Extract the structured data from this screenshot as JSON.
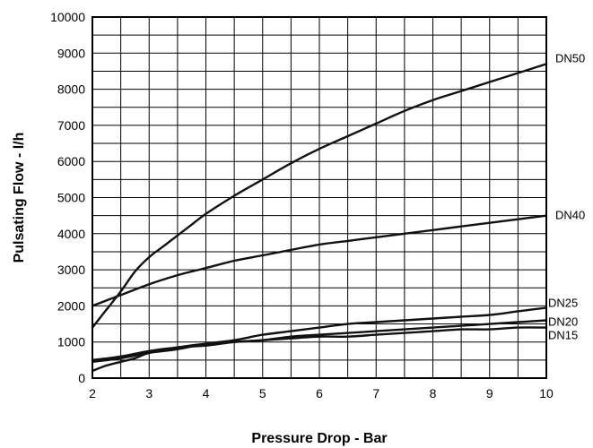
{
  "chart_data": {
    "type": "line",
    "title": "",
    "xlabel": "Pressure Drop - Bar",
    "ylabel": "Pulsating Flow - l/h",
    "xlim": [
      2,
      10
    ],
    "ylim": [
      0,
      10000
    ],
    "x_ticks": [
      "2",
      "3",
      "4",
      "5",
      "6",
      "7",
      "8",
      "9",
      "10"
    ],
    "y_ticks": [
      "0",
      "1000",
      "2000",
      "3000",
      "4000",
      "5000",
      "6000",
      "7000",
      "8000",
      "9000",
      "10000"
    ],
    "grid": true,
    "series": [
      {
        "name": "DN50",
        "x": [
          2,
          2.25,
          2.5,
          2.75,
          3,
          3.25,
          3.5,
          3.75,
          4,
          4.5,
          5,
          5.5,
          6,
          6.5,
          7,
          7.5,
          8,
          8.5,
          9,
          9.5,
          10
        ],
        "values": [
          1400,
          1900,
          2400,
          2950,
          3350,
          3650,
          3950,
          4250,
          4550,
          5050,
          5500,
          5950,
          6350,
          6700,
          7050,
          7400,
          7700,
          7950,
          8200,
          8450,
          8700
        ]
      },
      {
        "name": "DN40",
        "x": [
          2,
          2.5,
          3,
          3.5,
          4,
          4.5,
          5,
          5.5,
          6,
          6.5,
          7,
          7.5,
          8,
          8.5,
          9,
          9.5,
          10
        ],
        "values": [
          2000,
          2300,
          2600,
          2850,
          3050,
          3250,
          3400,
          3550,
          3700,
          3800,
          3900,
          4000,
          4100,
          4200,
          4300,
          4400,
          4500
        ]
      },
      {
        "name": "DN25",
        "x": [
          2,
          2.5,
          3,
          3.5,
          4,
          4.5,
          5,
          5.5,
          6,
          6.5,
          7,
          7.5,
          8,
          8.5,
          9,
          9.5,
          10
        ],
        "values": [
          450,
          550,
          700,
          800,
          950,
          1050,
          1200,
          1300,
          1400,
          1500,
          1550,
          1600,
          1650,
          1700,
          1750,
          1850,
          1950
        ]
      },
      {
        "name": "DN20",
        "x": [
          2,
          2.5,
          3,
          3.5,
          4,
          4.5,
          5,
          5.5,
          6,
          6.5,
          7,
          7.5,
          8,
          8.5,
          9,
          9.5,
          10
        ],
        "values": [
          500,
          600,
          750,
          850,
          900,
          1000,
          1050,
          1150,
          1200,
          1250,
          1300,
          1350,
          1400,
          1450,
          1500,
          1550,
          1600
        ]
      },
      {
        "name": "DN15",
        "x": [
          2,
          2.25,
          2.5,
          2.75,
          3,
          3.5,
          4,
          4.5,
          5,
          5.5,
          6,
          6.5,
          7,
          7.5,
          8,
          8.5,
          9,
          9.5,
          10
        ],
        "values": [
          200,
          350,
          450,
          550,
          700,
          850,
          950,
          1000,
          1050,
          1100,
          1150,
          1150,
          1200,
          1250,
          1300,
          1350,
          1350,
          1400,
          1400
        ]
      }
    ]
  }
}
